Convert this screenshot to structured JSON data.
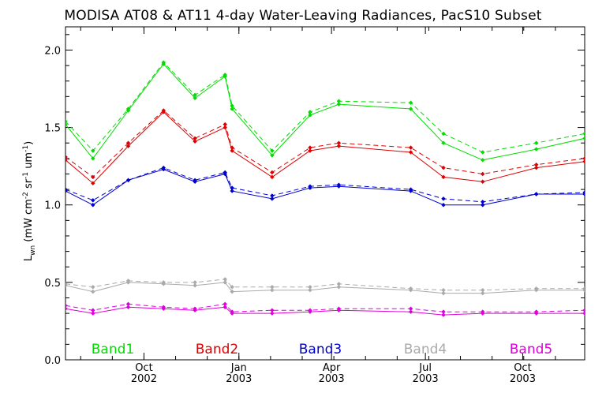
{
  "chart_data": {
    "type": "line",
    "title": "MODISA AT08 & AT11 4-day Water-Leaving Radiances, PacS10 Subset",
    "ylabel": {
      "main": "L",
      "sub": "wn",
      "unit": "(mW cm",
      "exp1": "-2",
      "sr": " sr",
      "exp2": "-1",
      "um": " um",
      "exp3": "-1",
      "close": ")"
    },
    "ylim": [
      0.0,
      2.15
    ],
    "xlim": [
      0,
      19.85
    ],
    "yticks": [
      "0.0",
      "0.5",
      "1.0",
      "1.5",
      "2.0"
    ],
    "ytick_values": [
      0.0,
      0.5,
      1.0,
      1.5,
      2.0
    ],
    "xticks": [
      {
        "month": "Oct",
        "year": "2002",
        "pos": 3.0
      },
      {
        "month": "Jan",
        "year": "2003",
        "pos": 6.63
      },
      {
        "month": "Apr",
        "year": "2003",
        "pos": 10.17
      },
      {
        "month": "Jul",
        "year": "2003",
        "pos": 13.76
      },
      {
        "month": "Oct",
        "year": "2003",
        "pos": 17.48
      }
    ],
    "x": [
      0,
      1.05,
      2.4,
      3.75,
      4.95,
      6.1,
      6.37,
      7.9,
      9.35,
      10.45,
      13.2,
      14.45,
      15.95,
      18.0,
      19.85
    ],
    "series": [
      {
        "name": "Band1",
        "color": "#00dd00",
        "curve": "solid",
        "values": [
          1.52,
          1.3,
          1.61,
          1.91,
          1.69,
          1.83,
          1.62,
          1.32,
          1.58,
          1.65,
          1.62,
          1.4,
          1.29,
          1.36,
          1.43
        ]
      },
      {
        "name": "Band1",
        "color": "#00dd00",
        "curve": "dashed",
        "values": [
          1.54,
          1.35,
          1.62,
          1.92,
          1.71,
          1.84,
          1.64,
          1.35,
          1.6,
          1.67,
          1.66,
          1.46,
          1.34,
          1.4,
          1.46
        ]
      },
      {
        "name": "Band2",
        "color": "#dd0000",
        "curve": "solid",
        "values": [
          1.29,
          1.14,
          1.38,
          1.6,
          1.41,
          1.5,
          1.35,
          1.18,
          1.35,
          1.38,
          1.34,
          1.18,
          1.15,
          1.24,
          1.28
        ]
      },
      {
        "name": "Band2",
        "color": "#dd0000",
        "curve": "dashed",
        "values": [
          1.31,
          1.18,
          1.4,
          1.61,
          1.43,
          1.52,
          1.37,
          1.21,
          1.37,
          1.4,
          1.37,
          1.24,
          1.2,
          1.26,
          1.3
        ]
      },
      {
        "name": "Band3",
        "color": "#0000cc",
        "curve": "solid",
        "values": [
          1.09,
          1.0,
          1.16,
          1.23,
          1.15,
          1.2,
          1.09,
          1.04,
          1.11,
          1.12,
          1.09,
          1.0,
          1.0,
          1.07,
          1.07
        ]
      },
      {
        "name": "Band3",
        "color": "#0000cc",
        "curve": "dashed",
        "values": [
          1.1,
          1.03,
          1.16,
          1.24,
          1.16,
          1.21,
          1.11,
          1.06,
          1.12,
          1.13,
          1.1,
          1.04,
          1.02,
          1.07,
          1.08
        ]
      },
      {
        "name": "Band4",
        "color": "#aaaaaa",
        "curve": "solid",
        "values": [
          0.48,
          0.44,
          0.5,
          0.49,
          0.48,
          0.5,
          0.44,
          0.45,
          0.45,
          0.47,
          0.45,
          0.43,
          0.43,
          0.45,
          0.45
        ]
      },
      {
        "name": "Band4",
        "color": "#aaaaaa",
        "curve": "dashed",
        "values": [
          0.49,
          0.47,
          0.51,
          0.5,
          0.5,
          0.52,
          0.47,
          0.47,
          0.47,
          0.49,
          0.46,
          0.45,
          0.45,
          0.46,
          0.46
        ]
      },
      {
        "name": "Band5",
        "color": "#dd00dd",
        "curve": "solid",
        "values": [
          0.33,
          0.3,
          0.34,
          0.33,
          0.32,
          0.34,
          0.3,
          0.3,
          0.31,
          0.32,
          0.31,
          0.29,
          0.3,
          0.3,
          0.3
        ]
      },
      {
        "name": "Band5",
        "color": "#dd00dd",
        "curve": "dashed",
        "values": [
          0.35,
          0.32,
          0.36,
          0.34,
          0.33,
          0.36,
          0.31,
          0.32,
          0.32,
          0.33,
          0.33,
          0.31,
          0.31,
          0.31,
          0.32
        ]
      }
    ],
    "legend": [
      {
        "label": "Band1",
        "color": "#00dd00"
      },
      {
        "label": "Band2",
        "color": "#dd0000"
      },
      {
        "label": "Band3",
        "color": "#0000cc"
      },
      {
        "label": "Band4",
        "color": "#aaaaaa"
      },
      {
        "label": "Band5",
        "color": "#dd00dd"
      }
    ],
    "legend_placement": "bottom inside plot",
    "grid": false
  }
}
